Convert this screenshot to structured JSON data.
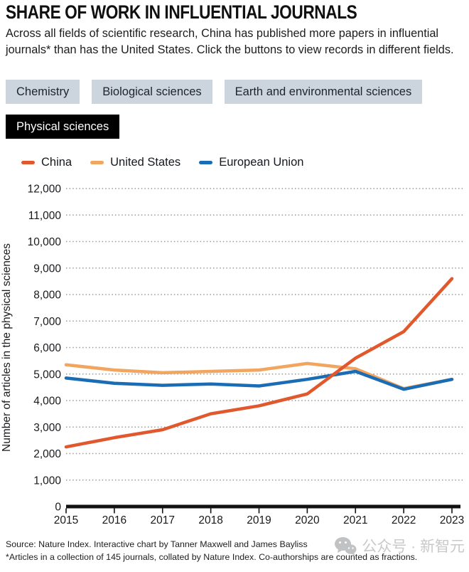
{
  "header": {
    "title": "SHARE OF WORK IN INFLUENTIAL JOURNALS",
    "description": "Across all fields of scientific research, China has published more papers in influential journals* than has the United States. Click the buttons to view records in different fields."
  },
  "buttons": [
    {
      "label": "Chemistry",
      "selected": false
    },
    {
      "label": "Biological sciences",
      "selected": false
    },
    {
      "label": "Earth and environmental sciences",
      "selected": false
    },
    {
      "label": "Physical sciences",
      "selected": true
    }
  ],
  "chart_data": {
    "type": "line",
    "x": [
      2015,
      2016,
      2017,
      2018,
      2019,
      2020,
      2021,
      2022,
      2023
    ],
    "series": [
      {
        "name": "China",
        "color": "#e2582d",
        "values": [
          2250,
          2600,
          2900,
          3500,
          3800,
          4250,
          5600,
          6600,
          8600
        ]
      },
      {
        "name": "United States",
        "color": "#f2a55f",
        "values": [
          5350,
          5150,
          5050,
          5100,
          5150,
          5400,
          5200,
          4450,
          4800
        ]
      },
      {
        "name": "European Union",
        "color": "#1a6cb5",
        "values": [
          4850,
          4650,
          4575,
          4625,
          4550,
          4800,
          5100,
          4425,
          4800
        ]
      }
    ],
    "title": "",
    "xlabel": "",
    "ylabel": "Number of articles in the physical sciences",
    "ylim": [
      0,
      12000
    ],
    "ytick_step": 1000,
    "grid": "dotted-horizontal",
    "legend_position": "top-left",
    "z_order": [
      "United States",
      "European Union",
      "China"
    ]
  },
  "footer": {
    "source": "Source: Nature Index. Interactive chart by Tanner Maxwell and James Bayliss",
    "note": "*Articles in a collection of 145 journals, collated by Nature Index. Co-authorships are counted as fractions.",
    "watermark": "公众号 · 新智元"
  }
}
